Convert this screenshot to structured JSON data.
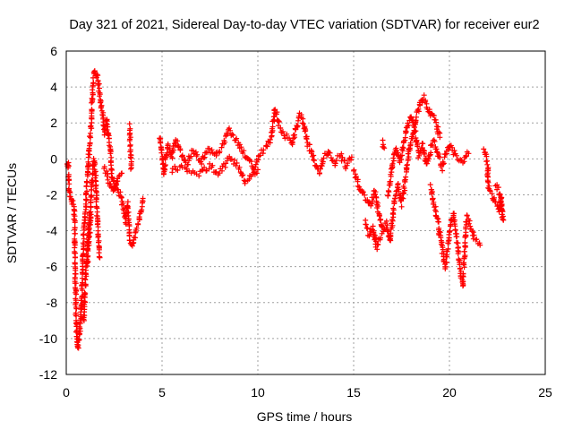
{
  "chart_data": {
    "type": "scatter",
    "title": "Day 321 of 2021, Sidereal Day-to-day VTEC variation (SDTVAR) for receiver eur2",
    "xlabel": "GPS time / hours",
    "ylabel": "SDTVAR / TECUs",
    "xlim": [
      0,
      25
    ],
    "ylim": [
      -12,
      6
    ],
    "x_ticks": [
      0,
      5,
      10,
      15,
      20,
      25
    ],
    "y_ticks": [
      -12,
      -10,
      -8,
      -6,
      -4,
      -2,
      0,
      2,
      4,
      6
    ],
    "grid": true,
    "marker": "plus",
    "color": "#ff0000",
    "series": [
      {
        "name": "SDTVAR",
        "path": [
          [
            0.0,
            -0.4
          ],
          [
            0.1,
            -0.3
          ],
          [
            0.15,
            -1.9
          ],
          [
            0.25,
            -2.2
          ],
          [
            0.35,
            -2.4
          ],
          [
            0.42,
            -2.8
          ],
          [
            0.5,
            -8.0
          ],
          [
            0.55,
            -10.0
          ],
          [
            0.6,
            -10.5
          ],
          [
            0.7,
            -9.8
          ],
          [
            0.8,
            -8.0
          ],
          [
            0.85,
            -6.0
          ],
          [
            0.9,
            -4.5
          ],
          [
            1.0,
            -3.0
          ],
          [
            1.1,
            -1.0
          ],
          [
            1.2,
            0.5
          ],
          [
            1.3,
            2.0
          ],
          [
            1.4,
            4.5
          ],
          [
            1.5,
            4.9
          ],
          [
            1.6,
            4.6
          ],
          [
            1.7,
            4.0
          ],
          [
            1.8,
            3.0
          ],
          [
            1.9,
            2.5
          ],
          [
            2.0,
            1.5
          ],
          [
            2.1,
            2.2
          ],
          [
            2.2,
            1.3
          ],
          [
            2.3,
            0.4
          ],
          [
            2.4,
            -1.2
          ],
          [
            2.6,
            -1.5
          ],
          [
            2.8,
            -2.0
          ],
          [
            3.0,
            -2.8
          ],
          [
            3.1,
            -3.5
          ],
          [
            3.2,
            -2.5
          ],
          [
            3.3,
            -4.5
          ],
          [
            3.45,
            -4.8
          ],
          [
            3.6,
            -4.2
          ],
          [
            3.8,
            -3.5
          ],
          [
            4.0,
            -2.2
          ]
        ],
        "branches": [
          [
            [
              1.1,
              -6.0
            ],
            [
              1.25,
              -3.5
            ],
            [
              1.35,
              -1.0
            ],
            [
              1.45,
              0.0
            ],
            [
              1.55,
              -1.5
            ],
            [
              1.65,
              -4.0
            ],
            [
              1.75,
              -5.5
            ]
          ],
          [
            [
              0.9,
              -9.0
            ],
            [
              1.0,
              -7.0
            ],
            [
              1.1,
              -5.0
            ],
            [
              1.2,
              -3.0
            ]
          ],
          [
            [
              2.0,
              -0.5
            ],
            [
              2.2,
              -1.2
            ],
            [
              2.5,
              -1.8
            ],
            [
              2.7,
              -1.0
            ],
            [
              2.9,
              -0.8
            ]
          ],
          [
            [
              3.3,
              1.8
            ],
            [
              3.35,
              0.5
            ],
            [
              3.4,
              -0.5
            ]
          ],
          [
            [
              4.9,
              1.2
            ],
            [
              5.0,
              0.2
            ],
            [
              5.1,
              -0.8
            ],
            [
              5.3,
              0.8
            ],
            [
              5.5,
              0.1
            ],
            [
              5.7,
              1.0
            ],
            [
              6.0,
              0.3
            ],
            [
              6.3,
              -0.3
            ],
            [
              6.6,
              0.5
            ],
            [
              7.0,
              -0.2
            ],
            [
              7.4,
              0.6
            ],
            [
              7.8,
              0.2
            ],
            [
              8.2,
              0.8
            ],
            [
              8.5,
              1.6
            ],
            [
              8.9,
              1.0
            ],
            [
              9.2,
              0.4
            ],
            [
              9.5,
              0.0
            ],
            [
              9.8,
              -0.6
            ],
            [
              10.1,
              0.3
            ],
            [
              10.4,
              0.6
            ],
            [
              10.7,
              1.2
            ],
            [
              10.9,
              2.8
            ],
            [
              11.2,
              1.6
            ],
            [
              11.5,
              1.2
            ],
            [
              11.8,
              0.8
            ],
            [
              12.0,
              1.8
            ],
            [
              12.2,
              2.4
            ],
            [
              12.4,
              2.0
            ],
            [
              12.6,
              0.8
            ],
            [
              12.8,
              0.4
            ],
            [
              13.0,
              -0.4
            ],
            [
              13.2,
              -0.8
            ],
            [
              13.4,
              0.0
            ],
            [
              13.7,
              0.4
            ],
            [
              14.0,
              -0.2
            ],
            [
              14.3,
              0.2
            ],
            [
              14.6,
              -0.4
            ],
            [
              14.9,
              0.1
            ]
          ],
          [
            [
              5.5,
              -0.6
            ],
            [
              6.0,
              -0.4
            ],
            [
              6.5,
              -0.7
            ],
            [
              7.0,
              -0.8
            ],
            [
              7.5,
              -0.4
            ],
            [
              8.0,
              -0.8
            ],
            [
              8.5,
              0.0
            ],
            [
              9.0,
              -0.4
            ],
            [
              9.3,
              -1.2
            ],
            [
              9.6,
              -1.0
            ],
            [
              10.0,
              -0.6
            ]
          ],
          [
            [
              15.0,
              -0.6
            ],
            [
              15.3,
              -1.6
            ],
            [
              15.5,
              -2.0
            ],
            [
              15.7,
              -2.3
            ],
            [
              15.9,
              -2.6
            ],
            [
              16.1,
              -1.8
            ],
            [
              16.3,
              -3.0
            ],
            [
              16.5,
              -4.0
            ],
            [
              16.7,
              -3.6
            ],
            [
              16.9,
              -4.6
            ],
            [
              17.1,
              -2.6
            ],
            [
              17.3,
              -1.5
            ],
            [
              17.5,
              -2.5
            ],
            [
              17.7,
              -1.2
            ],
            [
              17.9,
              0.5
            ],
            [
              18.1,
              1.5
            ],
            [
              18.3,
              2.5
            ],
            [
              18.5,
              3.2
            ],
            [
              18.7,
              3.4
            ],
            [
              18.9,
              2.8
            ],
            [
              19.1,
              2.4
            ],
            [
              19.3,
              2.0
            ],
            [
              19.5,
              1.2
            ]
          ],
          [
            [
              16.8,
              -2.0
            ],
            [
              17.0,
              -0.5
            ],
            [
              17.2,
              0.5
            ],
            [
              17.4,
              -0.2
            ],
            [
              17.6,
              0.8
            ],
            [
              17.8,
              1.8
            ],
            [
              18.0,
              2.4
            ],
            [
              18.2,
              1.5
            ],
            [
              18.4,
              0.2
            ],
            [
              18.6,
              0.8
            ],
            [
              18.8,
              -0.3
            ],
            [
              19.0,
              0.5
            ],
            [
              19.2,
              1.0
            ],
            [
              19.4,
              0.2
            ],
            [
              19.6,
              -0.5
            ],
            [
              19.8,
              0.2
            ],
            [
              20.0,
              0.8
            ],
            [
              20.2,
              0.4
            ],
            [
              20.4,
              0.1
            ],
            [
              20.7,
              -0.2
            ],
            [
              21.0,
              0.3
            ]
          ],
          [
            [
              19.0,
              -1.5
            ],
            [
              19.2,
              -2.5
            ],
            [
              19.4,
              -3.5
            ],
            [
              19.5,
              -4.2
            ],
            [
              19.7,
              -5.5
            ],
            [
              19.8,
              -6.0
            ],
            [
              20.0,
              -4.0
            ],
            [
              20.2,
              -3.0
            ],
            [
              20.4,
              -4.5
            ],
            [
              20.6,
              -6.5
            ],
            [
              20.7,
              -7.0
            ],
            [
              20.9,
              -3.2
            ],
            [
              21.1,
              -3.8
            ],
            [
              21.3,
              -4.4
            ],
            [
              21.6,
              -4.8
            ]
          ],
          [
            [
              15.6,
              -3.5
            ],
            [
              15.8,
              -4.2
            ],
            [
              16.0,
              -3.8
            ],
            [
              16.2,
              -5.0
            ],
            [
              16.4,
              -4.4
            ]
          ],
          [
            [
              16.5,
              0.9
            ],
            [
              16.6,
              0.6
            ]
          ],
          [
            [
              21.8,
              0.5
            ],
            [
              21.9,
              0.1
            ],
            [
              22.0,
              -0.4
            ],
            [
              22.0,
              -1.5
            ],
            [
              22.2,
              -2.0
            ],
            [
              22.4,
              -2.4
            ],
            [
              22.6,
              -3.0
            ],
            [
              22.7,
              -2.2
            ],
            [
              22.8,
              -3.4
            ],
            [
              22.6,
              -1.8
            ],
            [
              22.4,
              -1.5
            ]
          ]
        ]
      }
    ]
  }
}
